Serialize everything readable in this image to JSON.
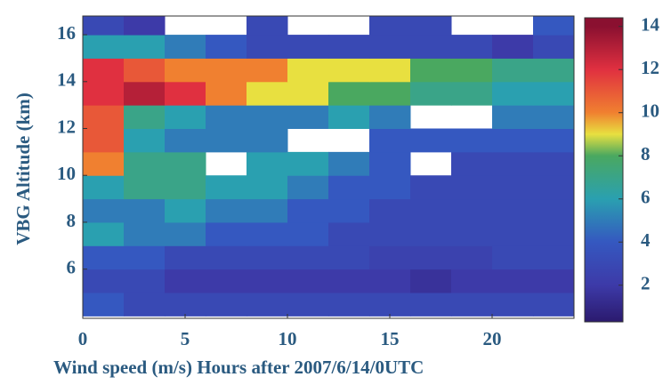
{
  "chart_data": {
    "type": "heatmap",
    "xlabel": "Wind speed (m/s)  Hours after 2007/6/14/0UTC",
    "ylabel": "VBG Altitude (km)",
    "x": [
      1,
      3,
      5,
      7,
      9,
      11,
      13,
      15,
      17,
      19,
      21,
      23
    ],
    "y": [
      4.5,
      5.5,
      6.5,
      7.5,
      8.5,
      9.5,
      10.5,
      11.5,
      12.5,
      13.5,
      14.5,
      15.5,
      16.5
    ],
    "z": [
      [
        4,
        3,
        3,
        3,
        3,
        3,
        3,
        3,
        3,
        3,
        3,
        3
      ],
      [
        3,
        3,
        2,
        2,
        2,
        2,
        2,
        2,
        1.5,
        2,
        2,
        2
      ],
      [
        4,
        4,
        3,
        3,
        3,
        3,
        3,
        2.5,
        2.5,
        2.5,
        3,
        3
      ],
      [
        6,
        5,
        5,
        4,
        4,
        4,
        3,
        3,
        3,
        3,
        3,
        3
      ],
      [
        5,
        5,
        6,
        5,
        5,
        4,
        4,
        3,
        3,
        3,
        3,
        3
      ],
      [
        6,
        7,
        7,
        6,
        6,
        5,
        4,
        4,
        3,
        3,
        3,
        3
      ],
      [
        10,
        7,
        7,
        null,
        6,
        6,
        5,
        4,
        null,
        3,
        3,
        3
      ],
      [
        11,
        6,
        5,
        5,
        5,
        null,
        null,
        4,
        4,
        4,
        4,
        4
      ],
      [
        11,
        7,
        6,
        5,
        5,
        5,
        6,
        5,
        null,
        null,
        5,
        5
      ],
      [
        12,
        13,
        12,
        10,
        9,
        9,
        8,
        8,
        7,
        7,
        6,
        6
      ],
      [
        12,
        11,
        10,
        10,
        10,
        9,
        9,
        9,
        8,
        8,
        7,
        7
      ],
      [
        6,
        6,
        5,
        4,
        3,
        3,
        3,
        3,
        3,
        3,
        2,
        3
      ],
      [
        3,
        2,
        null,
        null,
        3,
        null,
        null,
        3,
        3,
        null,
        null,
        4
      ]
    ],
    "xlim": [
      0,
      24
    ],
    "xticks": [
      0,
      5,
      10,
      15,
      20
    ],
    "ylim": [
      3.9,
      16.8
    ],
    "yticks": [
      6,
      8,
      10,
      12,
      14,
      16
    ],
    "clim": [
      0.3,
      14.4
    ],
    "cticks": [
      2,
      4,
      6,
      8,
      10,
      12,
      14
    ],
    "colorscale": [
      [
        0,
        "#2b1a6e"
      ],
      [
        2,
        "#3d3aa8"
      ],
      [
        4,
        "#3558c0"
      ],
      [
        6,
        "#2aa0b0"
      ],
      [
        8,
        "#4aa860"
      ],
      [
        9,
        "#e8e040"
      ],
      [
        10,
        "#f08030"
      ],
      [
        12,
        "#e03040"
      ],
      [
        14,
        "#8a1030"
      ]
    ]
  }
}
